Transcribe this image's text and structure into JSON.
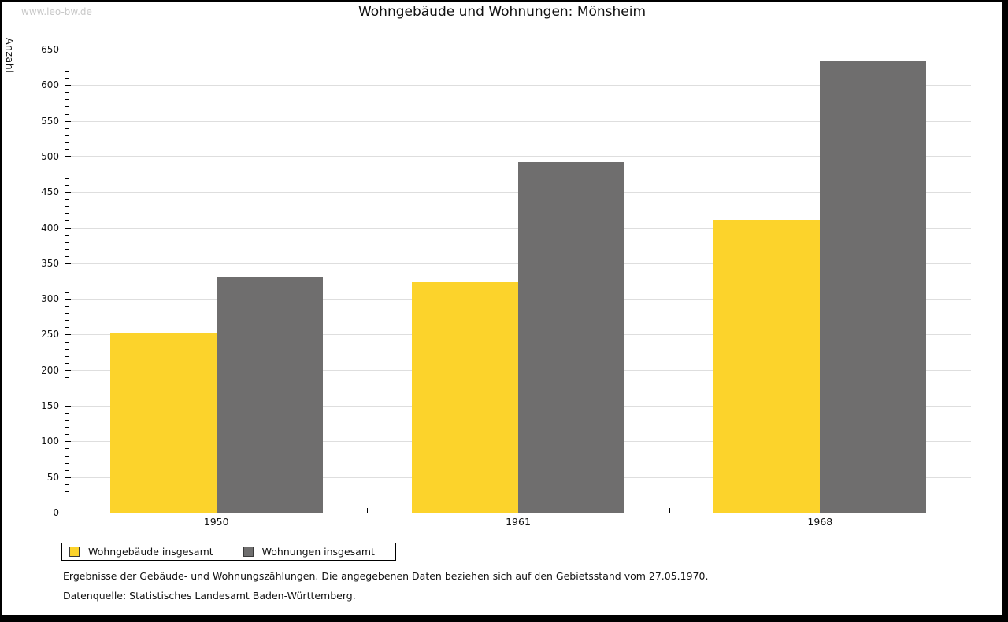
{
  "page": {
    "watermark": "www.leo-bw.de",
    "background": "#ffffff",
    "frame_color": "#000000"
  },
  "chart_data": {
    "type": "bar",
    "title": "Wohngebäude und Wohnungen: Mönsheim",
    "ylabel": "Anzahl",
    "xlabel": "",
    "categories": [
      "1950",
      "1961",
      "1968"
    ],
    "series": [
      {
        "name": "Wohngebäude insgesamt",
        "color": "#fcd32b",
        "values": [
          253,
          323,
          411
        ]
      },
      {
        "name": "Wohnungen insgesamt",
        "color": "#6f6e6e",
        "values": [
          331,
          492,
          635
        ]
      }
    ],
    "ylim": [
      0,
      650
    ],
    "y_major_step": 50,
    "y_minor_step": 10,
    "grid": true,
    "gridline_color": "#dedede",
    "legend_position": "bottom-left"
  },
  "footer": {
    "line1": "Ergebnisse der Gebäude- und Wohnungszählungen. Die angegebenen Daten beziehen sich auf den Gebietsstand vom 27.05.1970.",
    "line2": "Datenquelle: Statistisches Landesamt Baden-Württemberg."
  }
}
